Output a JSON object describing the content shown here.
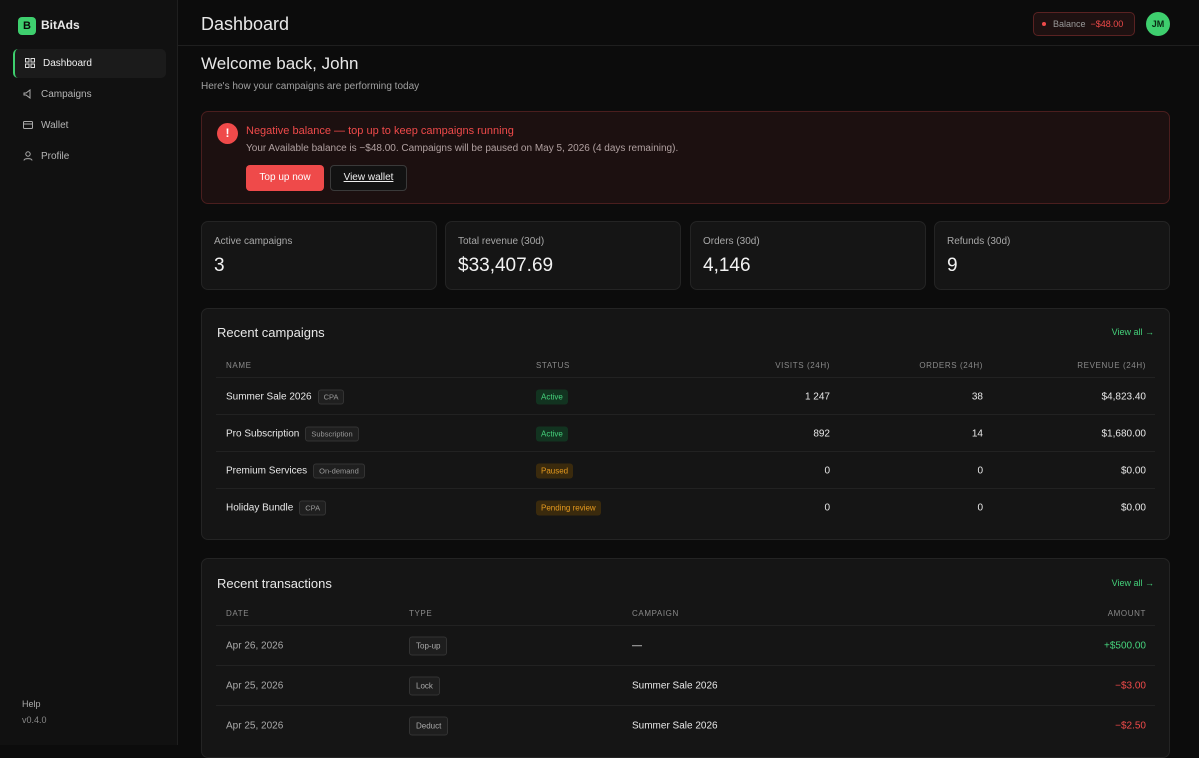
{
  "brand": {
    "logo": "B",
    "name": "BitAds"
  },
  "nav": [
    "Dashboard",
    "Campaigns",
    "Wallet",
    "Profile"
  ],
  "sidebar_footer": {
    "help": "Help",
    "version": "v0.4.0"
  },
  "header": {
    "title": "Dashboard",
    "balance_label": "Balance",
    "balance": "−$48.00",
    "avatar": "JM"
  },
  "welcome": {
    "title": "Welcome back, John",
    "subtitle": "Here's how your campaigns are performing today"
  },
  "alert": {
    "title": "Negative balance — top up to keep campaigns running",
    "body": "Your Available balance is −$48.00. Campaigns will be paused on May 5, 2026 (4 days remaining).",
    "buttons": [
      "Top up now",
      "View wallet"
    ]
  },
  "stats": [
    {
      "label": "Active campaigns",
      "value": "3"
    },
    {
      "label": "Total revenue (30d)",
      "value": "$33,407.69"
    },
    {
      "label": "Orders (30d)",
      "value": "4,146"
    },
    {
      "label": "Refunds (30d)",
      "value": "9"
    }
  ],
  "campaigns": {
    "title": "Recent campaigns",
    "link": "View all →",
    "columns": [
      "NAME",
      "STATUS",
      "VISITS (24H)",
      "ORDERS (24H)",
      "REVENUE (24H)"
    ],
    "rows": [
      {
        "name": "Summer Sale 2026",
        "tag": "CPA",
        "status": "Active",
        "visits": "1 247",
        "orders": "38",
        "revenue": "$4,823.40"
      },
      {
        "name": "Pro Subscription",
        "tag": "Subscription",
        "status": "Active",
        "visits": "892",
        "orders": "14",
        "revenue": "$1,680.00"
      },
      {
        "name": "Premium Services",
        "tag": "On-demand",
        "status": "Paused",
        "visits": "0",
        "orders": "0",
        "revenue": "$0.00"
      },
      {
        "name": "Holiday Bundle",
        "tag": "CPA",
        "status": "Pending review",
        "visits": "0",
        "orders": "0",
        "revenue": "$0.00"
      }
    ]
  },
  "transactions": {
    "title": "Recent transactions",
    "link": "View all →",
    "columns": [
      "DATE",
      "TYPE",
      "CAMPAIGN",
      "AMOUNT"
    ],
    "rows": [
      {
        "date": "Apr 26, 2026",
        "type": "Top-up",
        "campaign": "—",
        "amount": "+$500.00"
      },
      {
        "date": "Apr 25, 2026",
        "type": "Lock",
        "campaign": "Summer Sale 2026",
        "amount": "−$3.00"
      },
      {
        "date": "Apr 25, 2026",
        "type": "Deduct",
        "campaign": "Summer Sale 2026",
        "amount": "−$2.50"
      }
    ]
  }
}
